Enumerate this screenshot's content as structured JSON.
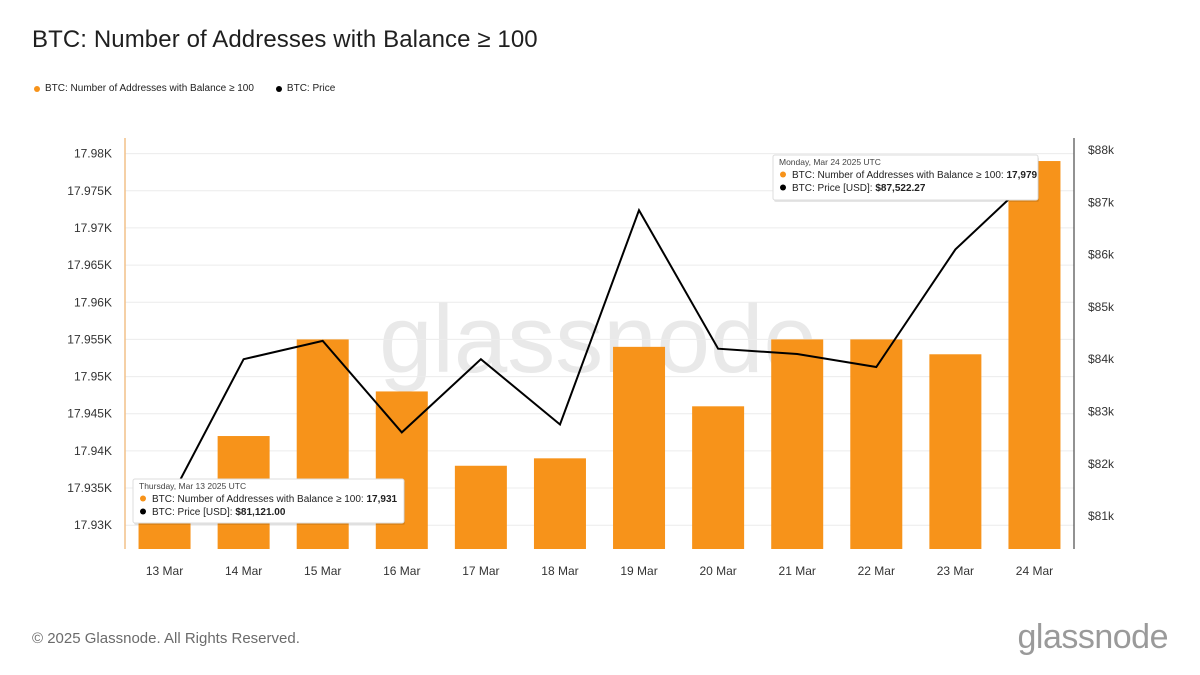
{
  "title": "BTC: Number of Addresses with Balance ≥ 100",
  "legend": {
    "items": [
      {
        "label": "BTC: Number of Addresses with Balance ≥ 100",
        "color": "#f7931a"
      },
      {
        "label": "BTC: Price",
        "color": "#000000"
      }
    ]
  },
  "footer": {
    "copyright": "© 2025 Glassnode. All Rights Reserved.",
    "brand": "glassnode"
  },
  "watermark": "glassnode",
  "colors": {
    "bar": "#f7931a",
    "line": "#000000",
    "grid": "#ececec",
    "axis": "#4a4a4a"
  },
  "chart_data": {
    "type": "bar",
    "title": "BTC: Number of Addresses with Balance ≥ 100",
    "categories": [
      "13 Mar",
      "14 Mar",
      "15 Mar",
      "16 Mar",
      "17 Mar",
      "18 Mar",
      "19 Mar",
      "20 Mar",
      "21 Mar",
      "22 Mar",
      "23 Mar",
      "24 Mar"
    ],
    "series": [
      {
        "name": "BTC: Number of Addresses with Balance ≥ 100",
        "type": "bar",
        "axis": "left",
        "values": [
          17931,
          17942,
          17955,
          17948,
          17938,
          17939,
          17954,
          17946,
          17955,
          17955,
          17953,
          17979
        ]
      },
      {
        "name": "BTC: Price",
        "type": "line",
        "axis": "right",
        "values": [
          81121,
          84000,
          84350,
          82600,
          84000,
          82750,
          86850,
          84200,
          84100,
          83850,
          86100,
          87522.27
        ]
      }
    ],
    "y_left": {
      "ticks": [
        17930,
        17935,
        17940,
        17945,
        17950,
        17955,
        17960,
        17965,
        17970,
        17975,
        17980
      ],
      "tick_labels": [
        "17.93K",
        "17.935K",
        "17.94K",
        "17.945K",
        "17.95K",
        "17.955K",
        "17.96K",
        "17.965K",
        "17.97K",
        "17.975K",
        "17.98K"
      ],
      "ylim": [
        17926.8,
        17982.1
      ]
    },
    "y_right": {
      "ticks": [
        81000,
        82000,
        83000,
        84000,
        85000,
        86000,
        87000,
        88000
      ],
      "tick_labels": [
        "$81k",
        "$82k",
        "$83k",
        "$84k",
        "$85k",
        "$86k",
        "$87k",
        "$88k"
      ],
      "ylim": [
        80370,
        88230
      ]
    },
    "grid": true,
    "legend_position": "top-left",
    "tooltips": [
      {
        "date": "Thursday, Mar 13 2025 UTC",
        "lines": [
          {
            "label": "BTC: Number of Addresses with Balance ≥ 100:",
            "value": "17,931",
            "color": "#f7931a"
          },
          {
            "label": "BTC: Price [USD]:",
            "value": "$81,121.00",
            "color": "#000000"
          }
        ]
      },
      {
        "date": "Monday, Mar 24 2025 UTC",
        "lines": [
          {
            "label": "BTC: Number of Addresses with Balance ≥ 100:",
            "value": "17,979",
            "color": "#f7931a"
          },
          {
            "label": "BTC: Price [USD]:",
            "value": "$87,522.27",
            "color": "#000000"
          }
        ]
      }
    ]
  }
}
